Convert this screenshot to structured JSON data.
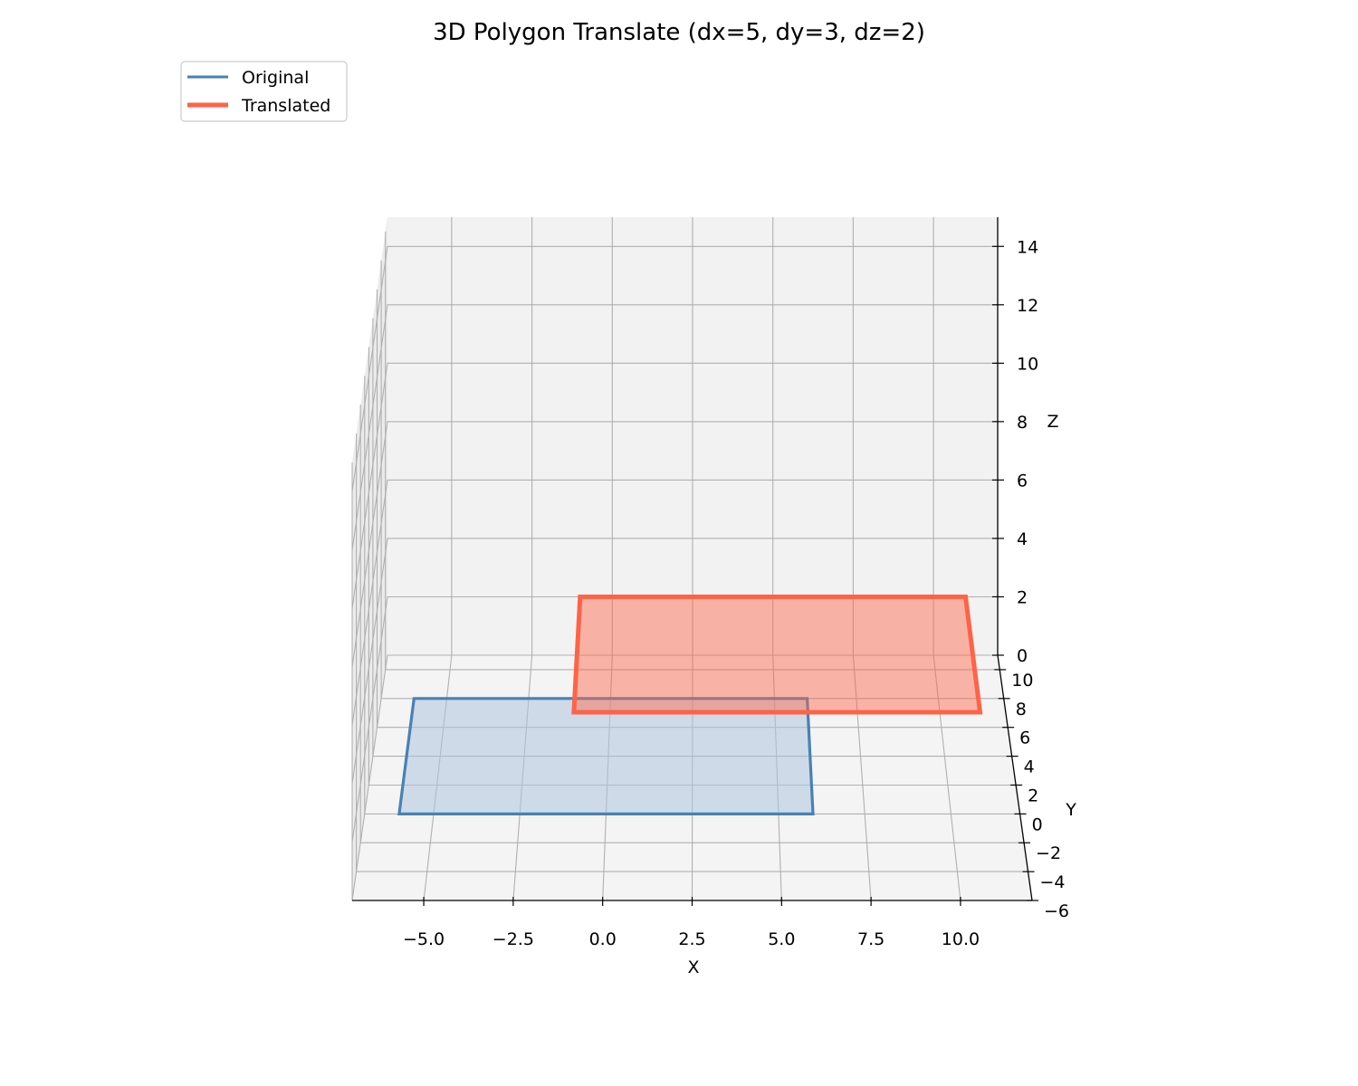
{
  "chart_data": {
    "type": "3d-polygon",
    "title": "3D Polygon Translate (dx=5, dy=3, dz=2)",
    "xlabel": "X",
    "ylabel": "Y",
    "zlabel": "Z",
    "xlim": [
      -7,
      12
    ],
    "ylim": [
      -6,
      11
    ],
    "zlim": [
      0,
      15
    ],
    "x_ticks": [
      -5.0,
      -2.5,
      0.0,
      2.5,
      5.0,
      7.5,
      10.0
    ],
    "x_tick_labels": [
      "−5.0",
      "−2.5",
      "0.0",
      "2.5",
      "5.0",
      "7.5",
      "10.0"
    ],
    "y_ticks": [
      -6,
      -4,
      -2,
      0,
      2,
      4,
      6,
      8,
      10
    ],
    "y_tick_labels": [
      "−6",
      "−4",
      "−2",
      "0",
      "2",
      "4",
      "6",
      "8",
      "10"
    ],
    "z_ticks": [
      0,
      2,
      4,
      6,
      8,
      10,
      12,
      14
    ],
    "z_tick_labels": [
      "0",
      "2",
      "4",
      "6",
      "8",
      "10",
      "12",
      "14"
    ],
    "grid": true,
    "legend_position": "top-left",
    "series": [
      {
        "name": "Original",
        "color": "#4682b4",
        "fill_color": "#b0c4de",
        "vertices": [
          [
            -6,
            0,
            0
          ],
          [
            6,
            0,
            0
          ],
          [
            6,
            8,
            0
          ],
          [
            -6,
            8,
            0
          ]
        ]
      },
      {
        "name": "Translated",
        "color": "#ff6347",
        "fill_color": "#ff6347",
        "vertices": [
          [
            -1,
            3,
            2
          ],
          [
            11,
            3,
            2
          ],
          [
            11,
            11,
            2
          ],
          [
            -1,
            11,
            2
          ]
        ]
      }
    ]
  }
}
